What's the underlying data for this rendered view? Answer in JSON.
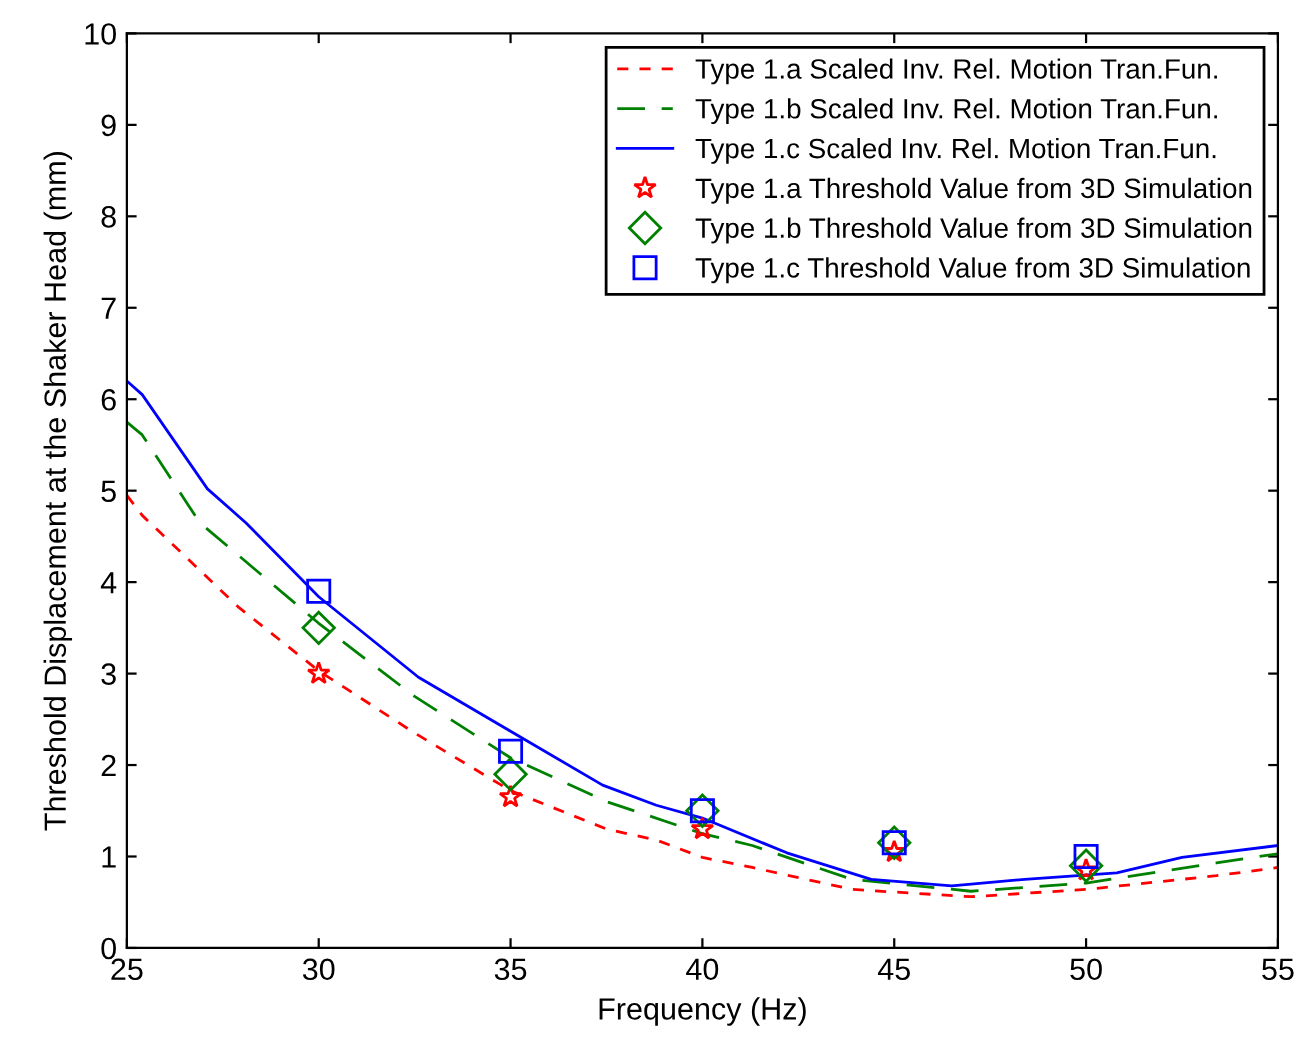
{
  "chart_data": {
    "type": "line",
    "xlabel": "Frequency (Hz)",
    "ylabel": "Threshold Displacement at the Shaker Head (mm)",
    "xlim": [
      25,
      55
    ],
    "xticks": [
      25,
      30,
      35,
      40,
      45,
      50,
      55
    ],
    "ylim": [
      0,
      10
    ],
    "yticks": [
      0,
      1,
      2,
      3,
      4,
      5,
      6,
      7,
      8,
      9,
      10
    ],
    "grid": false,
    "legend": "top right",
    "series": [
      {
        "name": "Type 1.a Scaled Inv. Rel. Motion Tran.Fun.",
        "color": "#ff0000",
        "line_style": "dashed",
        "marker": "none",
        "x": [
          25,
          25.4,
          27.9,
          30,
          32.5,
          35,
          37.5,
          38.8,
          40,
          41.3,
          43.9,
          47,
          50,
          53.4,
          55
        ],
        "values": [
          4.95,
          4.73,
          3.73,
          3.03,
          2.35,
          1.72,
          1.3,
          1.18,
          0.99,
          0.88,
          0.64,
          0.56,
          0.64,
          0.79,
          0.88
        ]
      },
      {
        "name": "Type 1.b Scaled Inv. Rel. Motion Tran.Fun.",
        "color": "#008000",
        "line_style": "dashed",
        "marker": "none",
        "x": [
          25,
          25.4,
          26.9,
          30,
          32.5,
          35,
          37.5,
          40,
          41.3,
          43.9,
          47,
          50,
          53.4,
          55
        ],
        "values": [
          5.75,
          5.61,
          4.65,
          3.55,
          2.75,
          2.08,
          1.6,
          1.25,
          1.12,
          0.75,
          0.62,
          0.71,
          0.93,
          1.03
        ]
      },
      {
        "name": "Type 1.c Scaled Inv. Rel. Motion Tran.Fun.",
        "color": "#0000ff",
        "line_style": "solid",
        "marker": "none",
        "x": [
          25,
          25.4,
          27.1,
          28.1,
          30,
          32.6,
          35,
          37.4,
          38.8,
          40,
          42.2,
          44.4,
          46.5,
          48.4,
          50.8,
          52.5,
          55
        ],
        "values": [
          6.2,
          6.05,
          5.02,
          4.65,
          3.84,
          2.96,
          2.37,
          1.78,
          1.56,
          1.42,
          1.04,
          0.75,
          0.68,
          0.75,
          0.82,
          0.99,
          1.12
        ]
      },
      {
        "name": "Type 1.a Threshold Value from 3D Simulation",
        "type": "scatter",
        "color": "#ff0000",
        "marker": "star",
        "x": [
          30,
          35,
          40,
          45,
          50
        ],
        "values": [
          3.0,
          1.65,
          1.3,
          1.05,
          0.85
        ]
      },
      {
        "name": "Type 1.b Threshold Value from 3D Simulation",
        "type": "scatter",
        "color": "#008000",
        "marker": "diamond",
        "x": [
          30,
          35,
          40,
          45,
          50
        ],
        "values": [
          3.5,
          1.9,
          1.5,
          1.15,
          0.9
        ]
      },
      {
        "name": "Type 1.c Threshold Value from 3D Simulation",
        "type": "scatter",
        "color": "#0000ff",
        "marker": "square",
        "x": [
          30,
          35,
          40,
          45,
          50
        ],
        "values": [
          3.9,
          2.15,
          1.5,
          1.15,
          1.0
        ]
      }
    ]
  }
}
